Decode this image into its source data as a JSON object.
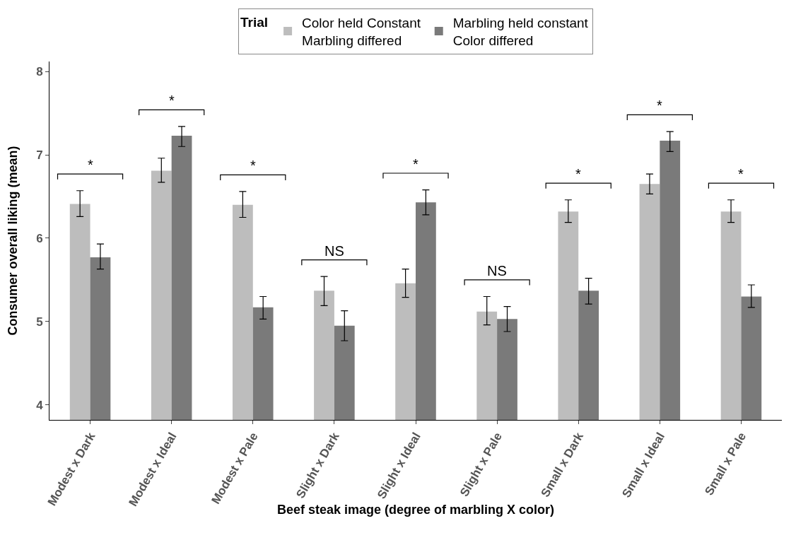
{
  "chart_data": {
    "type": "bar",
    "xlabel": "Beef steak image (degree of marbling X color)",
    "ylabel": "Consumer overall liking (mean)",
    "legend_title": "Trial",
    "legend": "top",
    "grid": false,
    "categories": [
      "Modest x Dark",
      "Modest x Ideal",
      "Modest x Pale",
      "Slight x Dark",
      "Slight x Ideal",
      "Slight x Pale",
      "Small x Dark",
      "Small x Ideal",
      "Small x Pale"
    ],
    "series": [
      {
        "name": "Color held Constant\nMarbling differed",
        "color": "#bdbdbd",
        "values": [
          6.41,
          6.81,
          6.4,
          5.37,
          5.46,
          5.12,
          6.32,
          6.65,
          6.32
        ],
        "errors": [
          [
            6.26,
            6.57
          ],
          [
            6.67,
            6.96
          ],
          [
            6.25,
            6.56
          ],
          [
            5.19,
            5.54
          ],
          [
            5.29,
            5.63
          ],
          [
            4.96,
            5.3
          ],
          [
            6.19,
            6.46
          ],
          [
            6.53,
            6.77
          ],
          [
            6.19,
            6.46
          ]
        ]
      },
      {
        "name": "Marbling held constant\nColor differed",
        "color": "#7a7a7a",
        "values": [
          5.77,
          7.23,
          5.17,
          4.95,
          6.43,
          5.03,
          5.37,
          7.17,
          5.3
        ],
        "errors": [
          [
            5.63,
            5.93
          ],
          [
            7.1,
            7.34
          ],
          [
            5.03,
            5.3
          ],
          [
            4.77,
            5.13
          ],
          [
            6.28,
            6.58
          ],
          [
            4.88,
            5.18
          ],
          [
            5.21,
            5.52
          ],
          [
            7.04,
            7.28
          ],
          [
            5.17,
            5.44
          ]
        ]
      }
    ],
    "ylim": [
      3.82,
      8.12
    ],
    "yticks": [
      4,
      5,
      6,
      7,
      8
    ],
    "annotations": [
      "*",
      "*",
      "*",
      "NS",
      "*",
      "NS",
      "*",
      "*",
      "*"
    ]
  }
}
